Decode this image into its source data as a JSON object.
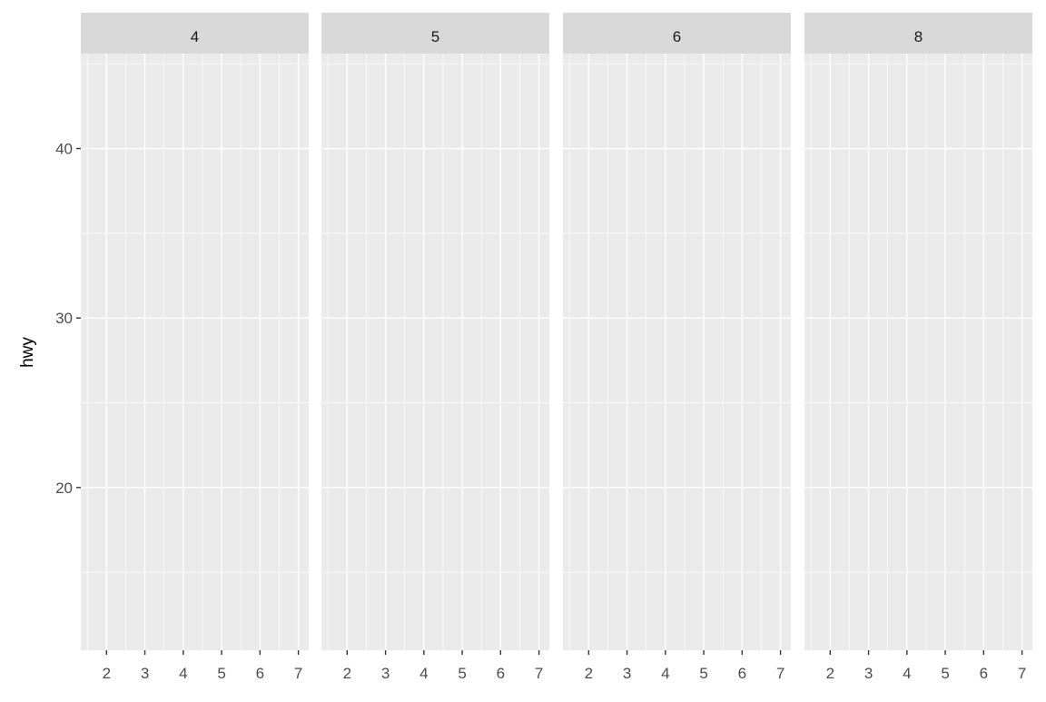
{
  "chart_data": {
    "type": "scatter",
    "facets": [
      "4",
      "5",
      "6",
      "8"
    ],
    "xlabel": "",
    "ylabel": "hwy",
    "xlim": [
      1.33,
      7.27
    ],
    "ylim": [
      10.4,
      45.6
    ],
    "x_ticks": [
      "2",
      "3",
      "4",
      "5",
      "6",
      "7"
    ],
    "y_ticks": [
      "20",
      "30",
      "40"
    ],
    "grid": true,
    "series": [],
    "colors": {
      "panel": "#EBEBEB",
      "strip": "#D9D9D9",
      "grid": "#FFFFFF",
      "text": "#4D4D4D",
      "strip_text": "#1A1A1A"
    }
  }
}
